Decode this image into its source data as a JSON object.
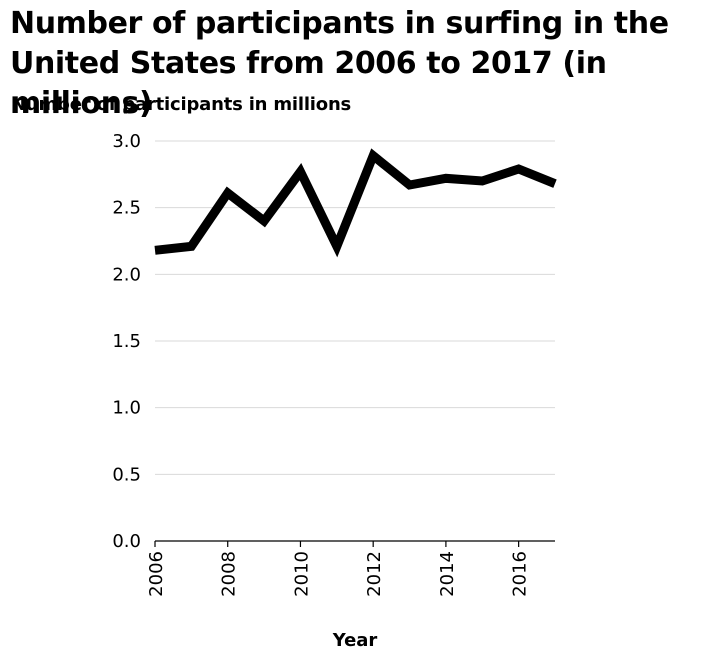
{
  "chart_data": {
    "type": "line",
    "title": "Number of participants in surfing in the United States from 2006 to 2017 (in millions)",
    "xlabel": "Year",
    "ylabel": "Number of participants in millions",
    "x": [
      2006,
      2007,
      2008,
      2009,
      2010,
      2011,
      2012,
      2013,
      2014,
      2015,
      2016,
      2017
    ],
    "series": [
      {
        "values": [
          2.18,
          2.21,
          2.61,
          2.4,
          2.77,
          2.21,
          2.89,
          2.67,
          2.72,
          2.7,
          2.79,
          2.68
        ]
      }
    ],
    "xlim": [
      2006,
      2017
    ],
    "ylim": [
      0,
      3.0
    ],
    "x_ticks": [
      "2006",
      "2008",
      "2010",
      "2012",
      "2014",
      "2016"
    ],
    "y_ticks": [
      "0.0",
      "0.5",
      "1.0",
      "1.5",
      "2.0",
      "2.5",
      "3.0"
    ],
    "grid": "horizontal",
    "line_color": "#000000",
    "grid_color": "#d9d9d9"
  }
}
